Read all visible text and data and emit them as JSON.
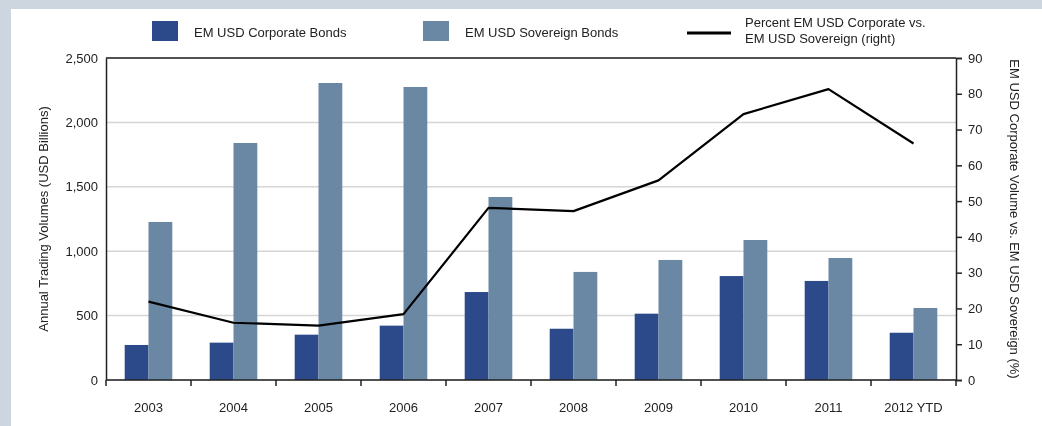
{
  "chart_data": {
    "type": "bar",
    "categories": [
      "2003",
      "2004",
      "2005",
      "2006",
      "2007",
      "2008",
      "2009",
      "2010",
      "2011",
      "2012 YTD"
    ],
    "series": [
      {
        "name": "EM USD Corporate Bonds",
        "color": "#2c4a8a",
        "values": [
          272,
          290,
          352,
          422,
          683,
          398,
          515,
          807,
          769,
          367
        ]
      },
      {
        "name": "EM USD Sovereign Bonds",
        "color": "#6a87a3",
        "values": [
          1227,
          1840,
          2306,
          2275,
          1421,
          839,
          932,
          1087,
          947,
          559
        ]
      },
      {
        "name": "Percent EM USD Corporate vs. EM USD Sovereign (right)",
        "type": "line",
        "axis": "y2",
        "color": "#000000",
        "values": [
          21.9,
          16.0,
          15.2,
          18.4,
          48.1,
          47.2,
          55.8,
          74.3,
          81.3,
          66.1
        ]
      }
    ],
    "ylabel": "Annual Trading Volumes (USD Billions)",
    "y2label": "EM USD Corporate Volume vs. EM USD Sovereign (%)",
    "ylim": [
      0,
      2500
    ],
    "yticks": [
      {
        "value": 0,
        "label": "0"
      },
      {
        "value": 500,
        "label": "500"
      },
      {
        "value": 1000,
        "label": "1,000"
      },
      {
        "value": 1500,
        "label": "1,500"
      },
      {
        "value": 2000,
        "label": "2,000"
      },
      {
        "value": 2500,
        "label": "2,500"
      }
    ],
    "y2lim": [
      0,
      90
    ],
    "y2ticks": [
      0,
      10,
      20,
      30,
      40,
      50,
      60,
      70,
      80,
      90
    ],
    "grid": "y",
    "legend": "top",
    "line_style": "solid"
  }
}
